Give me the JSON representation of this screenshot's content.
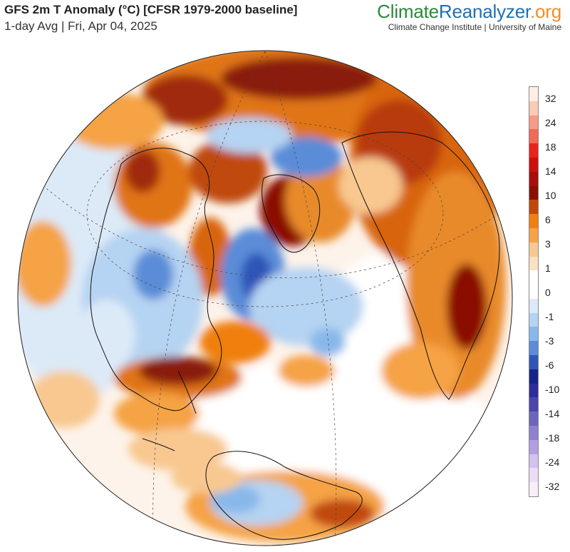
{
  "header": {
    "title": "GFS 2m T Anomaly (°C) [CFSR 1979-2000 baseline]",
    "subtitle": "1-day Avg | Fri, Apr 04, 2025"
  },
  "brand": {
    "part1": "Climate",
    "part2": "Reanalyzer",
    "part3": ".org",
    "tagline": "Climate Change Institute | University of Maine"
  },
  "legend": {
    "labels": [
      "32",
      "24",
      "18",
      "14",
      "10",
      "6",
      "3",
      "1",
      "0",
      "-1",
      "-3",
      "-6",
      "-10",
      "-14",
      "-18",
      "-24",
      "-32"
    ],
    "colors": [
      "#fdeee6",
      "#fbcbb5",
      "#f79a86",
      "#f06a58",
      "#e8231b",
      "#cc1010",
      "#a80f0a",
      "#8a1005",
      "#c0490a",
      "#f07f10",
      "#f5a345",
      "#f8c890",
      "#fbe0c4",
      "#ffffff",
      "#ffffff",
      "#dceaf8",
      "#b5d3f2",
      "#88b8ea",
      "#5a8cd8",
      "#2f55b8",
      "#17238a",
      "#2e2c9a",
      "#4b46ab",
      "#6d64bd",
      "#9080cf",
      "#b39ee0",
      "#d2c2ec",
      "#ecdcf6",
      "#f8eef8"
    ]
  },
  "map": {
    "projection": "orthographic",
    "center": "North Atlantic / Arctic",
    "colors": {
      "warm_strong": "#8a1005",
      "warm_mid": "#d45a0e",
      "warm": "#f07f10",
      "warm_light": "#f8c890",
      "neutral": "#ffffff",
      "cool_light": "#dceaf8",
      "cool": "#88b8ea",
      "cool_strong": "#2f55b8"
    }
  }
}
